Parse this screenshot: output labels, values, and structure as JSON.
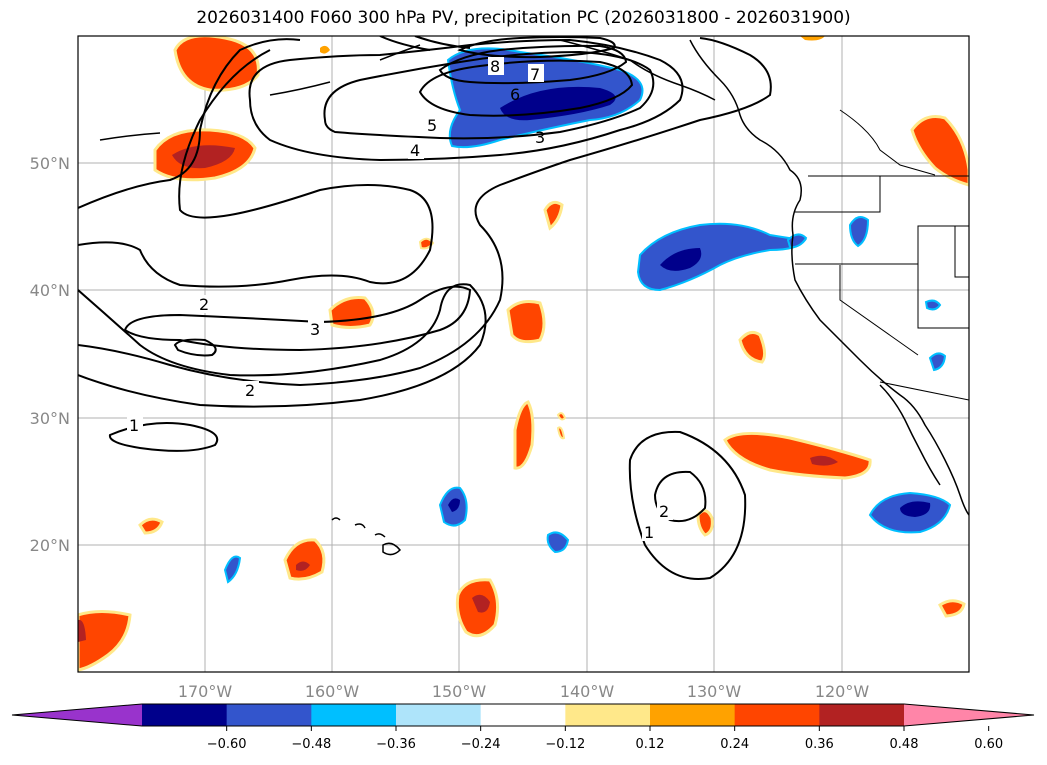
{
  "title": "2026031400 F060 300 hPa PV, precipitation PC (2026031800 - 2026031900)",
  "lat_labels": [
    "50°N",
    "40°N",
    "30°N",
    "20°N"
  ],
  "lon_labels": [
    "170°W",
    "160°W",
    "150°W",
    "140°W",
    "130°W",
    "120°W"
  ],
  "pv_contour_labels": [
    "8",
    "7",
    "6",
    "5",
    "4",
    "3",
    "2",
    "3",
    "2",
    "1",
    "2",
    "1"
  ],
  "colorbar": {
    "colors": [
      "#9933cc",
      "#00008b",
      "#3355cc",
      "#00bfff",
      "#aee4fa",
      "#ffffff",
      "#ffe88a",
      "#ffa200",
      "#ff4500",
      "#b22222",
      "#ff85a8"
    ],
    "tick_labels": [
      "−0.60",
      "−0.48",
      "−0.36",
      "−0.24",
      "−0.12",
      "0.12",
      "0.24",
      "0.36",
      "0.48",
      "0.60"
    ]
  }
}
